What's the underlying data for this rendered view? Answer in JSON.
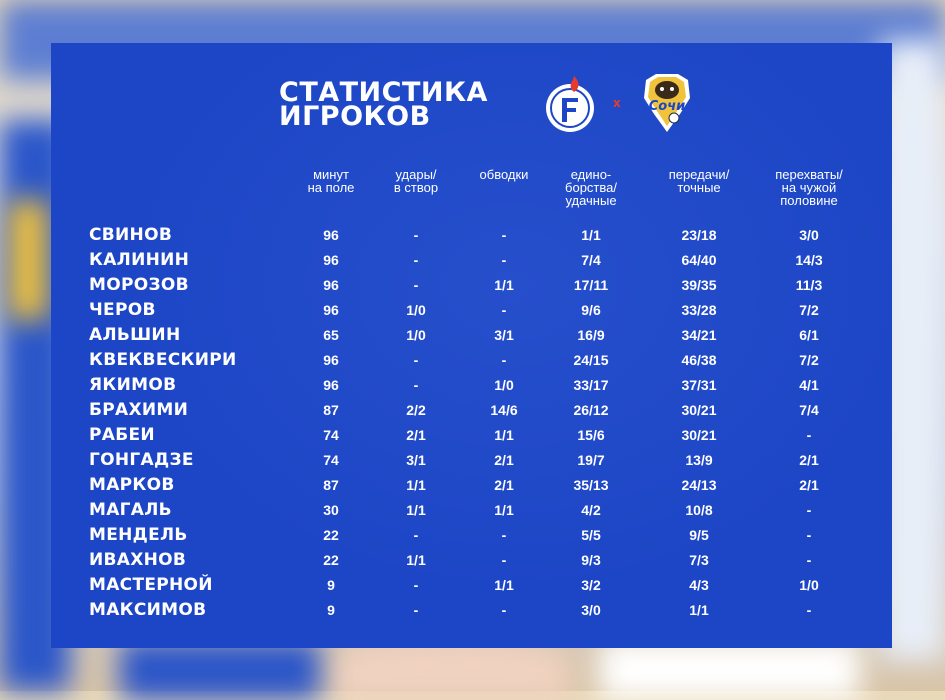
{
  "title": {
    "line1": "СТАТИСТИКА",
    "line2": "ИГРОКОВ"
  },
  "logos": {
    "home_icon": "fakel-logo-icon",
    "away_icon": "sochi-logo-icon",
    "separator": "x",
    "away_wordmark": "Сочи"
  },
  "colors": {
    "card": "#1d46c6",
    "text": "#ffffff",
    "separator": "#e63a2e"
  },
  "headers": [
    "минут\nна поле",
    "удары/\nв створ",
    "обводки",
    "едино-\nборства/\nудачные",
    "передачи/\nточные",
    "перехваты/\nна чужой\nполовине"
  ],
  "players": [
    {
      "name": "СВИНОВ",
      "stats": [
        "96",
        "-",
        "-",
        "1/1",
        "23/18",
        "3/0"
      ]
    },
    {
      "name": "КАЛИНИН",
      "stats": [
        "96",
        "-",
        "-",
        "7/4",
        "64/40",
        "14/3"
      ]
    },
    {
      "name": "МОРОЗОВ",
      "stats": [
        "96",
        "-",
        "1/1",
        "17/11",
        "39/35",
        "11/3"
      ]
    },
    {
      "name": "ЧЕРОВ",
      "stats": [
        "96",
        "1/0",
        "-",
        "9/6",
        "33/28",
        "7/2"
      ]
    },
    {
      "name": "АЛЬШИН",
      "stats": [
        "65",
        "1/0",
        "3/1",
        "16/9",
        "34/21",
        "6/1"
      ]
    },
    {
      "name": "КВЕКВЕСКИРИ",
      "stats": [
        "96",
        "-",
        "-",
        "24/15",
        "46/38",
        "7/2"
      ]
    },
    {
      "name": "ЯКИМОВ",
      "stats": [
        "96",
        "-",
        "1/0",
        "33/17",
        "37/31",
        "4/1"
      ]
    },
    {
      "name": "БРАХИМИ",
      "stats": [
        "87",
        "2/2",
        "14/6",
        "26/12",
        "30/21",
        "7/4"
      ]
    },
    {
      "name": "РАБЕИ",
      "stats": [
        "74",
        "2/1",
        "1/1",
        "15/6",
        "30/21",
        "-"
      ]
    },
    {
      "name": "ГОНГАДЗЕ",
      "stats": [
        "74",
        "3/1",
        "2/1",
        "19/7",
        "13/9",
        "2/1"
      ]
    },
    {
      "name": "МАРКОВ",
      "stats": [
        "87",
        "1/1",
        "2/1",
        "35/13",
        "24/13",
        "2/1"
      ]
    },
    {
      "name": "МАГАЛЬ",
      "stats": [
        "30",
        "1/1",
        "1/1",
        "4/2",
        "10/8",
        "-"
      ]
    },
    {
      "name": "МЕНДЕЛЬ",
      "stats": [
        "22",
        "-",
        "-",
        "5/5",
        "9/5",
        "-"
      ]
    },
    {
      "name": "ИВАХНОВ",
      "stats": [
        "22",
        "1/1",
        "-",
        "9/3",
        "7/3",
        "-"
      ]
    },
    {
      "name": "МАСТЕРНОЙ",
      "stats": [
        "9",
        "-",
        "1/1",
        "3/2",
        "4/3",
        "1/0"
      ]
    },
    {
      "name": "МАКСИМОВ",
      "stats": [
        "9",
        "-",
        "-",
        "3/0",
        "1/1",
        "-"
      ]
    }
  ]
}
